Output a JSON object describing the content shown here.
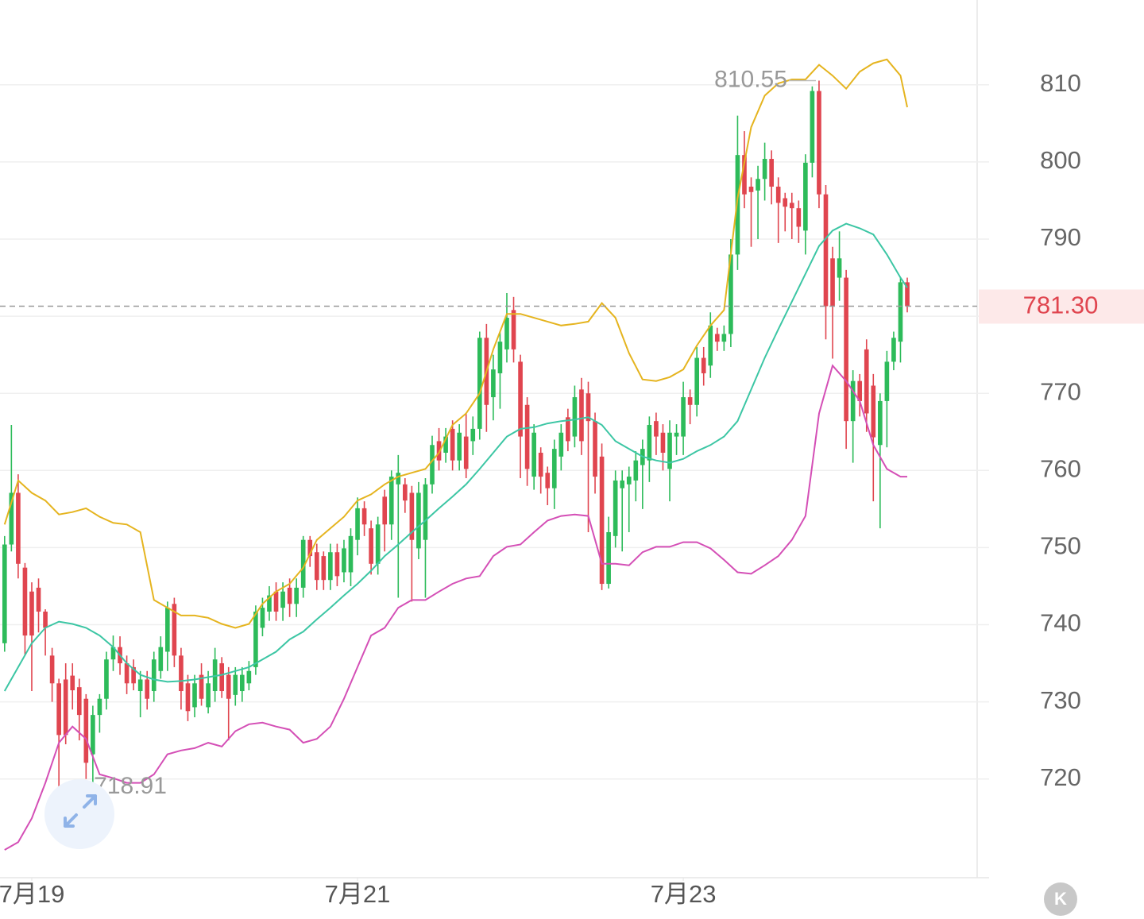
{
  "chart_data": {
    "type": "candlestick",
    "up_color": "#2dbb5a",
    "down_color": "#e0454f",
    "ylim": [
      707.2,
      821.0
    ],
    "yticks": [
      720,
      730,
      740,
      750,
      760,
      770,
      780,
      790,
      800,
      810
    ],
    "xlim": [
      -0.68,
      143.3
    ],
    "xticks": [
      {
        "value": 4,
        "label": "7月19"
      },
      {
        "value": 52,
        "label": "7月21"
      },
      {
        "value": 100,
        "label": "7月23"
      }
    ],
    "grid": true,
    "ohlc": [
      [
        737.6,
        751.5,
        736.5,
        750.4
      ],
      [
        750.4,
        765.9,
        749.5,
        757.1
      ],
      [
        757.1,
        759.5,
        746,
        747.9
      ],
      [
        747.4,
        748,
        736,
        738.6
      ],
      [
        744.3,
        745.5,
        731.4,
        738.6
      ],
      [
        744.8,
        746,
        739,
        741.7
      ],
      [
        741.7,
        742,
        736,
        739.6
      ],
      [
        736.0,
        737,
        730,
        732.4
      ],
      [
        732.4,
        733,
        718.91,
        725.7
      ],
      [
        732.9,
        735,
        724.5,
        725.7
      ],
      [
        733.4,
        735,
        729,
        731.5
      ],
      [
        731.9,
        733,
        725,
        728.3
      ],
      [
        730.4,
        731,
        720,
        722.1
      ],
      [
        723.2,
        729.5,
        719.5,
        728.3
      ],
      [
        728.3,
        731,
        726,
        730.4
      ],
      [
        730.4,
        736.5,
        729,
        735.5
      ],
      [
        735.5,
        738.6,
        734,
        737.1
      ],
      [
        737.1,
        738.5,
        733.5,
        735.0
      ],
      [
        735.0,
        736,
        731,
        732.4
      ],
      [
        734.5,
        735.5,
        731.5,
        732.4
      ],
      [
        731.4,
        734,
        728,
        732.9
      ],
      [
        732.9,
        734,
        729,
        730.4
      ],
      [
        731.4,
        736.5,
        730,
        735.5
      ],
      [
        734.0,
        738.5,
        733,
        737.1
      ],
      [
        736.5,
        743,
        734,
        742.2
      ],
      [
        742.7,
        743.5,
        734.5,
        736.0
      ],
      [
        736.0,
        737,
        729,
        731.4
      ],
      [
        732.4,
        733.5,
        727.5,
        728.8
      ],
      [
        729.3,
        733.5,
        728,
        732.4
      ],
      [
        733.5,
        735,
        729.5,
        730.4
      ],
      [
        729.3,
        734,
        728.5,
        732.4
      ],
      [
        731.4,
        737,
        730,
        735.5
      ],
      [
        735.0,
        735.8,
        730.5,
        731.4
      ],
      [
        733.5,
        734.5,
        725,
        730.4
      ],
      [
        730.9,
        734.5,
        729.5,
        733.5
      ],
      [
        731.4,
        734.5,
        730,
        733.5
      ],
      [
        732.4,
        735.3,
        731.5,
        734.0
      ],
      [
        734.5,
        742.5,
        733.5,
        741.7
      ],
      [
        739.6,
        743.5,
        738.5,
        742.2
      ],
      [
        741.7,
        745,
        740.5,
        743.8
      ],
      [
        744.3,
        745.5,
        740.5,
        741.7
      ],
      [
        742.2,
        745.5,
        740.5,
        744.3
      ],
      [
        744.8,
        746,
        741,
        742.7
      ],
      [
        742.7,
        746,
        741,
        744.8
      ],
      [
        744.8,
        751.5,
        743.5,
        751.0
      ],
      [
        751.0,
        751.5,
        747.5,
        748.9
      ],
      [
        749.4,
        750.5,
        744.5,
        745.8
      ],
      [
        748.9,
        749.5,
        744.5,
        745.8
      ],
      [
        745.8,
        750.5,
        744.5,
        749.4
      ],
      [
        749.4,
        750.5,
        745,
        746.3
      ],
      [
        746.8,
        751,
        745.5,
        749.9
      ],
      [
        746.8,
        752.5,
        745,
        751.5
      ],
      [
        751.0,
        756.5,
        749,
        755.1
      ],
      [
        755.1,
        756,
        751.5,
        753.0
      ],
      [
        752.5,
        753.5,
        746.5,
        747.9
      ],
      [
        747.9,
        754,
        746.5,
        753.0
      ],
      [
        756.6,
        757.5,
        749.5,
        753.0
      ],
      [
        753.0,
        760,
        751,
        759.2
      ],
      [
        758.2,
        762,
        743.5,
        759.7
      ],
      [
        758.2,
        759,
        754.5,
        756.1
      ],
      [
        757.1,
        758,
        743,
        751.0
      ],
      [
        749.9,
        758.5,
        748.5,
        757.1
      ],
      [
        751.0,
        759,
        743.5,
        758.2
      ],
      [
        758.2,
        764.5,
        757,
        763.3
      ],
      [
        763.8,
        765.5,
        760,
        761.3
      ],
      [
        762.3,
        765.5,
        761,
        764.4
      ],
      [
        765.4,
        766.5,
        760,
        761.3
      ],
      [
        761.3,
        766,
        760,
        764.9
      ],
      [
        764.4,
        767.5,
        759,
        760.2
      ],
      [
        763.8,
        767,
        762,
        765.4
      ],
      [
        765.4,
        778,
        764,
        777.2
      ],
      [
        777.2,
        779,
        765,
        768.5
      ],
      [
        769.5,
        775,
        766.5,
        773.1
      ],
      [
        772.6,
        778,
        768,
        776.7
      ],
      [
        775.7,
        783,
        774,
        779.8
      ],
      [
        780.8,
        782.5,
        774,
        775.7
      ],
      [
        774.1,
        775,
        759,
        764.4
      ],
      [
        768.5,
        769.5,
        758,
        760.2
      ],
      [
        759.2,
        766,
        757.5,
        764.9
      ],
      [
        762.3,
        763,
        757,
        759.2
      ],
      [
        759.7,
        760.5,
        755.5,
        757.7
      ],
      [
        757.7,
        764,
        755,
        762.8
      ],
      [
        761.8,
        766,
        760,
        764.9
      ],
      [
        766.9,
        768,
        762.5,
        763.8
      ],
      [
        764.4,
        771,
        763,
        769.5
      ],
      [
        770.5,
        772,
        762,
        763.8
      ],
      [
        770.0,
        771.5,
        752,
        766.4
      ],
      [
        766.4,
        767.5,
        757,
        759.2
      ],
      [
        761.8,
        763.5,
        744.5,
        745.3
      ],
      [
        745.3,
        754,
        744.7,
        752.0
      ],
      [
        751.5,
        760,
        750,
        758.7
      ],
      [
        757.7,
        760,
        749.5,
        758.7
      ],
      [
        758.2,
        760.5,
        752,
        759.2
      ],
      [
        758.7,
        762.5,
        756,
        761.3
      ],
      [
        760.7,
        764,
        755,
        762.8
      ],
      [
        761.3,
        767,
        758.5,
        765.9
      ],
      [
        766.4,
        767.5,
        762,
        764.4
      ],
      [
        764.9,
        766,
        760,
        762.3
      ],
      [
        760.2,
        766.5,
        756,
        764.9
      ],
      [
        764.4,
        766,
        762,
        764.9
      ],
      [
        764.4,
        771.5,
        762,
        769.5
      ],
      [
        769.5,
        770.5,
        766,
        768.5
      ],
      [
        768.5,
        776,
        767,
        774.6
      ],
      [
        774.6,
        776,
        771,
        772.6
      ],
      [
        773.6,
        780.5,
        772,
        778.8
      ],
      [
        777.7,
        778.5,
        775.5,
        776.7
      ],
      [
        776.7,
        778.8,
        775.5,
        777.7
      ],
      [
        777.7,
        790,
        776,
        788.0
      ],
      [
        788.0,
        806,
        786,
        800.9
      ],
      [
        800.9,
        804,
        794,
        795.8
      ],
      [
        796.8,
        798,
        789,
        796.1
      ],
      [
        796.3,
        799.5,
        790,
        797.8
      ],
      [
        797.8,
        802.5,
        795,
        800.4
      ],
      [
        800.4,
        801.5,
        794.5,
        796.8
      ],
      [
        796.8,
        798,
        789.5,
        794.7
      ],
      [
        795.3,
        796,
        791,
        794.2
      ],
      [
        794.7,
        796,
        790,
        794.0
      ],
      [
        794.0,
        795,
        789.5,
        791.6
      ],
      [
        791.1,
        801,
        788,
        799.9
      ],
      [
        799.9,
        809.8,
        798,
        809.2
      ],
      [
        809.2,
        810.55,
        794,
        795.8
      ],
      [
        795.8,
        797,
        777,
        781.3
      ],
      [
        787.5,
        789,
        774.5,
        781.3
      ],
      [
        785.0,
        791,
        782,
        787.5
      ],
      [
        785.0,
        786,
        762.8,
        766.4
      ],
      [
        766.4,
        773,
        761,
        771.6
      ],
      [
        771.6,
        772.5,
        767,
        769.0
      ],
      [
        775.7,
        777,
        765,
        767.4
      ],
      [
        771.0,
        772.5,
        756,
        764.3
      ],
      [
        763.3,
        770,
        752.5,
        769.0
      ],
      [
        769.0,
        775.5,
        763,
        774.1
      ],
      [
        774.1,
        778,
        773,
        777.2
      ],
      [
        776.7,
        785,
        774,
        784.4
      ],
      [
        784.4,
        785,
        780.5,
        781.3
      ]
    ],
    "bands": {
      "x": [
        0,
        2,
        4,
        6,
        8,
        10,
        12,
        14,
        16,
        18,
        20,
        22,
        24,
        26,
        28,
        30,
        32,
        34,
        36,
        38,
        40,
        42,
        44,
        46,
        48,
        50,
        52,
        54,
        56,
        58,
        60,
        62,
        64,
        66,
        68,
        70,
        72,
        74,
        76,
        78,
        80,
        82,
        84,
        86,
        88,
        90,
        92,
        94,
        96,
        98,
        100,
        102,
        104,
        106,
        108,
        110,
        112,
        114,
        116,
        118,
        120,
        122,
        124,
        126,
        128,
        130,
        132,
        133
      ],
      "series": [
        {
          "color": "#e5b41f",
          "values": [
            753.0,
            758.7,
            757.1,
            756.1,
            754.3,
            754.6,
            755.1,
            754.0,
            753.2,
            753.0,
            752.0,
            743.2,
            742.2,
            741.2,
            741.2,
            740.9,
            740.1,
            739.6,
            740.1,
            742.7,
            744.3,
            745.3,
            747.4,
            751.0,
            752.5,
            754.0,
            756.1,
            756.9,
            758.2,
            759.2,
            759.7,
            760.2,
            762.3,
            765.9,
            767.4,
            770.0,
            775.7,
            780.3,
            780.3,
            779.8,
            779.3,
            778.8,
            779.0,
            779.3,
            781.7,
            779.8,
            775.2,
            771.8,
            771.6,
            772.1,
            773.1,
            776.2,
            778.8,
            780.8,
            795.3,
            804.5,
            808.6,
            810.2,
            810.7,
            810.7,
            812.6,
            811.2,
            809.5,
            811.7,
            812.8,
            813.3,
            811.2,
            807.1
          ]
        },
        {
          "color": "#3cc6a4",
          "values": [
            731.4,
            734.5,
            737.6,
            739.6,
            740.4,
            740.1,
            739.6,
            738.6,
            737.1,
            735.0,
            733.5,
            732.9,
            732.6,
            732.7,
            732.9,
            733.2,
            733.5,
            734.0,
            734.5,
            735.5,
            736.5,
            738.1,
            739.1,
            740.7,
            742.2,
            743.8,
            745.3,
            747.0,
            748.9,
            750.4,
            752.0,
            753.5,
            755.1,
            756.6,
            758.2,
            760.2,
            762.3,
            764.4,
            765.4,
            765.6,
            766.1,
            766.4,
            766.6,
            766.9,
            765.9,
            763.8,
            762.8,
            761.8,
            761.3,
            761.0,
            761.5,
            762.5,
            763.3,
            764.4,
            766.4,
            770.5,
            774.6,
            778.3,
            781.9,
            785.5,
            789.1,
            791.1,
            792.0,
            791.4,
            790.6,
            788.0,
            785.0,
            783.7
          ]
        },
        {
          "color": "#d44fb6",
          "values": [
            710.8,
            711.8,
            714.9,
            719.5,
            724.7,
            726.8,
            725.2,
            720.6,
            720.1,
            719.5,
            719.5,
            720.6,
            723.2,
            723.7,
            724.0,
            724.7,
            724.2,
            726.2,
            727.1,
            727.3,
            726.8,
            726.4,
            724.7,
            725.2,
            726.8,
            730.4,
            734.5,
            738.6,
            739.6,
            742.2,
            743.2,
            743.2,
            744.3,
            745.3,
            746.0,
            746.3,
            748.9,
            750.1,
            750.4,
            752.0,
            753.5,
            754.1,
            754.3,
            754.1,
            747.9,
            747.9,
            747.7,
            749.4,
            750.1,
            750.1,
            750.7,
            750.7,
            749.9,
            748.4,
            746.8,
            746.6,
            747.7,
            748.9,
            751.0,
            754.1,
            767.4,
            773.6,
            771.6,
            769.0,
            763.3,
            760.2,
            759.2,
            759.2
          ]
        }
      ]
    },
    "high_marker": {
      "index": 120,
      "value": 810.55,
      "label": "810.55"
    },
    "low_marker": {
      "index": 8,
      "value": 718.91,
      "label": "718.91"
    },
    "last_price": {
      "value": 781.3,
      "label": "781.30"
    }
  },
  "ui": {
    "kline_button": "K"
  }
}
